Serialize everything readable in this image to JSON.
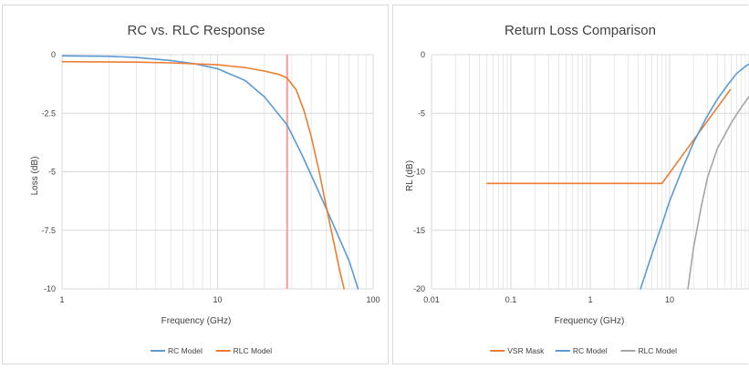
{
  "colors": {
    "rc": "#5b9bd5",
    "rlc": "#ed7d31",
    "vsr": "#ed7d31",
    "rlc_gray": "#a5a5a5",
    "marker": "#f4a3a3",
    "grid": "#d9d9d9",
    "text": "#404040"
  },
  "chart_data": [
    {
      "type": "line",
      "title": "RC vs. RLC Response",
      "xlabel": "Frequency (GHz)",
      "ylabel": "Loss (dB)",
      "x_scale": "log",
      "xlim": [
        1,
        100
      ],
      "ylim": [
        -10,
        0
      ],
      "x_ticks": [
        "1",
        "10",
        "100"
      ],
      "y_ticks": [
        "0",
        "-2.5",
        "-5",
        "-7.5",
        "-10"
      ],
      "grid": true,
      "legend_position": "bottom",
      "marker_x": 28,
      "series": [
        {
          "name": "RC Model",
          "color": "#5b9bd5",
          "x": [
            1,
            2,
            3,
            5,
            7,
            10,
            15,
            20,
            28,
            35,
            45,
            55,
            70,
            80
          ],
          "y": [
            -0.05,
            -0.07,
            -0.12,
            -0.25,
            -0.38,
            -0.6,
            -1.1,
            -1.8,
            -3.0,
            -4.3,
            -5.9,
            -7.2,
            -8.8,
            -10.0
          ]
        },
        {
          "name": "RLC Model",
          "color": "#ed7d31",
          "x": [
            1,
            3,
            5,
            10,
            15,
            20,
            25,
            28,
            32,
            36,
            40,
            45,
            50,
            55,
            60,
            65
          ],
          "y": [
            -0.3,
            -0.32,
            -0.35,
            -0.43,
            -0.55,
            -0.7,
            -0.85,
            -1.0,
            -1.5,
            -2.4,
            -3.5,
            -5.0,
            -6.5,
            -7.8,
            -9.0,
            -10.0
          ]
        }
      ]
    },
    {
      "type": "line",
      "title": "Return Loss Comparison",
      "xlabel": "Frequency (GHz)",
      "ylabel": "RL (dB)",
      "x_scale": "log",
      "xlim": [
        0.01,
        100
      ],
      "ylim": [
        -20,
        0
      ],
      "x_ticks": [
        "0.01",
        "0.1",
        "1",
        "10"
      ],
      "y_ticks": [
        "0",
        "-5",
        "-10",
        "-15",
        "-20"
      ],
      "grid": true,
      "legend_position": "bottom",
      "series": [
        {
          "name": "VSR Mask",
          "color": "#ed7d31",
          "x": [
            0.05,
            8,
            58
          ],
          "y": [
            -11,
            -11,
            -3
          ]
        },
        {
          "name": "RC Model",
          "color": "#5b9bd5",
          "x": [
            4.3,
            6,
            8,
            10,
            15,
            20,
            30,
            40,
            55,
            70,
            90,
            100
          ],
          "y": [
            -20,
            -17,
            -14.5,
            -12.5,
            -9.5,
            -7.5,
            -5.2,
            -3.8,
            -2.5,
            -1.6,
            -1.0,
            -0.8
          ]
        },
        {
          "name": "RLC Model",
          "color": "#a5a5a5",
          "x": [
            17,
            20,
            25,
            30,
            40,
            50,
            60,
            70,
            80,
            100
          ],
          "y": [
            -20,
            -16.5,
            -13,
            -10.5,
            -8,
            -6.8,
            -5.8,
            -5.1,
            -4.5,
            -3.6
          ]
        }
      ]
    }
  ]
}
